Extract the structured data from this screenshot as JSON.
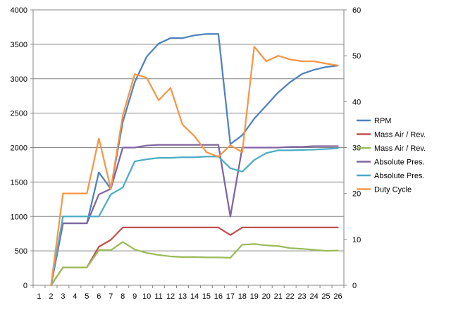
{
  "chart_data": {
    "type": "line",
    "x": [
      1,
      2,
      3,
      4,
      5,
      6,
      7,
      8,
      9,
      10,
      11,
      12,
      13,
      14,
      15,
      16,
      17,
      18,
      19,
      20,
      21,
      22,
      23,
      24,
      25,
      26
    ],
    "y_left": {
      "ylim": [
        0,
        4000
      ],
      "ticks": [
        0,
        500,
        1000,
        1500,
        2000,
        2500,
        3000,
        3500,
        4000
      ]
    },
    "y_right": {
      "ylim": [
        0,
        60
      ],
      "ticks": [
        0,
        10,
        20,
        30,
        40,
        50,
        60
      ]
    },
    "grid": "horizontal",
    "legend": "right",
    "series": [
      {
        "name": "RPM",
        "axis": "left",
        "color": "#4F81BD",
        "values": [
          null,
          0,
          900,
          900,
          900,
          1640,
          1400,
          2370,
          2950,
          3320,
          3510,
          3590,
          3590,
          3630,
          3650,
          3650,
          2050,
          2180,
          2420,
          2610,
          2800,
          2950,
          3070,
          3130,
          3170,
          3190
        ]
      },
      {
        "name": "Mass Air / Rev.",
        "axis": "left",
        "color": "#C0504D",
        "values": [
          null,
          0,
          260,
          260,
          260,
          560,
          660,
          840,
          840,
          840,
          840,
          840,
          840,
          840,
          840,
          840,
          730,
          840,
          840,
          840,
          840,
          840,
          840,
          840,
          840,
          840
        ]
      },
      {
        "name": "Mass Air / Rev.",
        "axis": "left",
        "color": "#9BBB59",
        "values": [
          null,
          0,
          260,
          260,
          260,
          510,
          510,
          630,
          520,
          470,
          440,
          420,
          410,
          410,
          405,
          405,
          400,
          590,
          600,
          580,
          570,
          540,
          530,
          515,
          500,
          505
        ]
      },
      {
        "name": "Absolute Pres.",
        "axis": "left",
        "color": "#8064A2",
        "values": [
          null,
          0,
          900,
          900,
          900,
          1320,
          1400,
          2000,
          2000,
          2030,
          2040,
          2040,
          2040,
          2040,
          2040,
          2040,
          1000,
          2000,
          2000,
          2000,
          2000,
          2010,
          2010,
          2020,
          2020,
          2020
        ]
      },
      {
        "name": "Absolute Pres.",
        "axis": "left",
        "color": "#4BACC6",
        "values": [
          null,
          0,
          1000,
          1000,
          1000,
          1000,
          1320,
          1420,
          1800,
          1830,
          1850,
          1850,
          1860,
          1860,
          1870,
          1870,
          1700,
          1650,
          1820,
          1920,
          1960,
          1960,
          1965,
          1970,
          1980,
          1990
        ]
      },
      {
        "name": "Duty Cycle",
        "axis": "right",
        "color": "#F79646",
        "values": [
          null,
          0,
          20,
          20,
          20,
          32,
          21,
          37,
          46,
          45.2,
          40.3,
          43,
          35,
          32.5,
          29,
          28,
          30.5,
          29,
          52,
          48.8,
          50,
          49.2,
          48.8,
          48.8,
          48.3,
          47.9
        ]
      }
    ]
  }
}
